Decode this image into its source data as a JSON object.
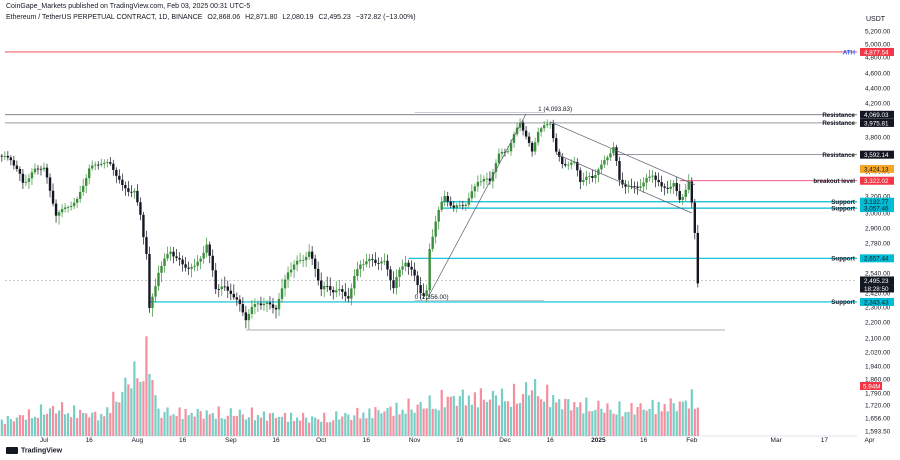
{
  "header": {
    "published": "CoinGape_Markets published on TradingView.com, Feb 03, 2025 00:31 UTC-5",
    "symbol": "Ethereum / TetherUS PERPETUAL CONTRACT, 1D, BINANCE",
    "open": "O2,868.06",
    "high": "H2,871.80",
    "low": "L2,080.19",
    "close": "C2,495.23",
    "change": "−372.82 (−13.00%)"
  },
  "axis_currency": "USDT",
  "footer_brand": "TradingView",
  "colors": {
    "up": "#26a69a",
    "down": "#131722",
    "up_body": "#3a8f3a",
    "level_teal": "#00bcd4",
    "ath_red": "#f23645",
    "breakout": "#e91e63",
    "resistance": "#131722",
    "ema": "#f5a623",
    "volume_up": "#76cfc6",
    "volume_down": "#f48fa0"
  },
  "chart_data": {
    "type": "candlestick",
    "y_axis": {
      "ticks": [
        5200,
        5000,
        4800,
        4600,
        4400,
        4200,
        4000,
        3800,
        3600,
        3400,
        3200,
        3000,
        2900,
        2780,
        2660,
        2540,
        2420,
        2300,
        2200,
        2100,
        2020,
        1940,
        1860,
        1790,
        1720,
        1656,
        1593.5
      ],
      "tick_labels": [
        "5,200.00",
        "5,000.00",
        "4,800.00",
        "4,600.00",
        "4,400.00",
        "4,200.00",
        "4,000.00",
        "3,800.00",
        "3,600.00",
        "3,400.00",
        "3,200.00",
        "3,000.00",
        "2,900.00",
        "2,780.00",
        "2,660.00",
        "2,540.00",
        "2,420.00",
        "2,300.00",
        "2,200.00",
        "2,100.00",
        "2,020.00",
        "1,940.00",
        "1,860.00",
        "1,790.00",
        "1,720.00",
        "1,656.00",
        "1,593.50"
      ]
    },
    "x_axis": {
      "labels": [
        "Jul",
        "16",
        "Aug",
        "16",
        "Sep",
        "16",
        "Oct",
        "16",
        "Nov",
        "16",
        "Dec",
        "16",
        "2025",
        "16",
        "Feb",
        "Mar",
        "17",
        "Apr"
      ],
      "label_dates": [
        "2024-07-01",
        "2024-07-16",
        "2024-08-01",
        "2024-08-16",
        "2024-09-01",
        "2024-09-16",
        "2024-10-01",
        "2024-10-16",
        "2024-11-01",
        "2024-11-16",
        "2024-12-01",
        "2024-12-16",
        "2025-01-01",
        "2025-01-16",
        "2025-02-01",
        "2025-03-01",
        "2025-03-17",
        "2025-04-01"
      ]
    },
    "price_path": [
      [
        "2024-06-16",
        3580
      ],
      [
        "2024-06-20",
        3540
      ],
      [
        "2024-06-24",
        3300
      ],
      [
        "2024-06-28",
        3410
      ],
      [
        "2024-07-01",
        3450
      ],
      [
        "2024-07-05",
        3000
      ],
      [
        "2024-07-08",
        3050
      ],
      [
        "2024-07-12",
        3150
      ],
      [
        "2024-07-16",
        3430
      ],
      [
        "2024-07-20",
        3500
      ],
      [
        "2024-07-23",
        3480
      ],
      [
        "2024-07-27",
        3270
      ],
      [
        "2024-07-31",
        3230
      ],
      [
        "2024-08-02",
        2990
      ],
      [
        "2024-08-04",
        2700
      ],
      [
        "2024-08-05",
        2280
      ],
      [
        "2024-08-08",
        2560
      ],
      [
        "2024-08-12",
        2720
      ],
      [
        "2024-08-16",
        2600
      ],
      [
        "2024-08-20",
        2580
      ],
      [
        "2024-08-24",
        2760
      ],
      [
        "2024-08-27",
        2460
      ],
      [
        "2024-09-01",
        2430
      ],
      [
        "2024-09-06",
        2230
      ],
      [
        "2024-09-10",
        2340
      ],
      [
        "2024-09-16",
        2300
      ],
      [
        "2024-09-20",
        2560
      ],
      [
        "2024-09-24",
        2640
      ],
      [
        "2024-09-27",
        2700
      ],
      [
        "2024-10-01",
        2450
      ],
      [
        "2024-10-06",
        2440
      ],
      [
        "2024-10-10",
        2390
      ],
      [
        "2024-10-14",
        2620
      ],
      [
        "2024-10-18",
        2640
      ],
      [
        "2024-10-22",
        2620
      ],
      [
        "2024-10-25",
        2460
      ],
      [
        "2024-10-29",
        2640
      ],
      [
        "2024-11-01",
        2510
      ],
      [
        "2024-11-04",
        2400
      ],
      [
        "2024-11-05",
        2420
      ],
      [
        "2024-11-06",
        2720
      ],
      [
        "2024-11-08",
        2960
      ],
      [
        "2024-11-11",
        3190
      ],
      [
        "2024-11-14",
        3060
      ],
      [
        "2024-11-18",
        3110
      ],
      [
        "2024-11-22",
        3330
      ],
      [
        "2024-11-26",
        3320
      ],
      [
        "2024-11-29",
        3590
      ],
      [
        "2024-12-02",
        3650
      ],
      [
        "2024-12-06",
        3990
      ],
      [
        "2024-12-10",
        3620
      ],
      [
        "2024-12-12",
        3880
      ],
      [
        "2024-12-16",
        3980
      ],
      [
        "2024-12-18",
        3620
      ],
      [
        "2024-12-20",
        3480
      ],
      [
        "2024-12-24",
        3490
      ],
      [
        "2024-12-26",
        3330
      ],
      [
        "2024-12-30",
        3350
      ],
      [
        "2025-01-02",
        3460
      ],
      [
        "2025-01-06",
        3680
      ],
      [
        "2025-01-08",
        3320
      ],
      [
        "2025-01-12",
        3260
      ],
      [
        "2025-01-16",
        3300
      ],
      [
        "2025-01-19",
        3380
      ],
      [
        "2025-01-22",
        3260
      ],
      [
        "2025-01-26",
        3290
      ],
      [
        "2025-01-28",
        3160
      ],
      [
        "2025-01-31",
        3300
      ],
      [
        "2025-02-01",
        3110
      ],
      [
        "2025-02-02",
        2870
      ],
      [
        "2025-02-03",
        2495
      ]
    ],
    "volume_path": [
      [
        "2024-06-16",
        0.18
      ],
      [
        "2024-07-05",
        0.35
      ],
      [
        "2024-07-20",
        0.25
      ],
      [
        "2024-08-05",
        1.0
      ],
      [
        "2024-08-08",
        0.3
      ],
      [
        "2024-09-06",
        0.28
      ],
      [
        "2024-10-01",
        0.22
      ],
      [
        "2024-11-06",
        0.4
      ],
      [
        "2024-11-12",
        0.48
      ],
      [
        "2024-12-06",
        0.5
      ],
      [
        "2024-12-09",
        0.62
      ],
      [
        "2024-12-20",
        0.42
      ],
      [
        "2025-01-08",
        0.33
      ],
      [
        "2025-01-27",
        0.4
      ],
      [
        "2025-02-02",
        0.47
      ],
      [
        "2025-02-03",
        0.45
      ]
    ],
    "current_price_label": "2,495.23",
    "countdown_label": "18:28:50",
    "volume_label": "5.94M",
    "levels": [
      {
        "name": "ATH",
        "value": 4877.54,
        "value_label": "4,877.54",
        "kind": "ath"
      },
      {
        "name": "Resistance",
        "value": 4069.03,
        "value_label": "4,069.03",
        "kind": "resistance"
      },
      {
        "name": "Resistance",
        "value": 3975.81,
        "value_label": "3,975.81",
        "kind": "resistance"
      },
      {
        "name": "Resistance",
        "value": 3592.14,
        "value_label": "3,592.14",
        "kind": "resistance"
      },
      {
        "name": "",
        "value": 3424.13,
        "value_label": "3,424.13",
        "kind": "ema"
      },
      {
        "name": "breakout level",
        "value": 3322.02,
        "value_label": "3,322.02",
        "kind": "breakout"
      },
      {
        "name": "Support",
        "value": 3132.77,
        "value_label": "3,132.77",
        "kind": "support"
      },
      {
        "name": "Support",
        "value": 3057.46,
        "value_label": "3,057.46",
        "kind": "support"
      },
      {
        "name": "Support",
        "value": 2657.44,
        "value_label": "2,657.44",
        "kind": "support"
      },
      {
        "name": "Support",
        "value": 2343.43,
        "value_label": "2,343.43",
        "kind": "support"
      }
    ],
    "annotations": [
      {
        "text": "1 (4,093.83)",
        "date": "2024-12-12",
        "value": 4093.83
      },
      {
        "text": "0 (2,356.00)",
        "date": "2024-11-01",
        "value": 2356.0
      }
    ],
    "trendlines": [
      {
        "from": [
          "2024-12-16",
          3990
        ],
        "to": [
          "2025-02-02",
          3290
        ]
      },
      {
        "from": [
          "2024-12-18",
          3600
        ],
        "to": [
          "2025-02-01",
          3000
        ]
      },
      {
        "from": [
          "2024-11-05",
          2360
        ],
        "to": [
          "2024-12-08",
          4080
        ]
      }
    ]
  }
}
